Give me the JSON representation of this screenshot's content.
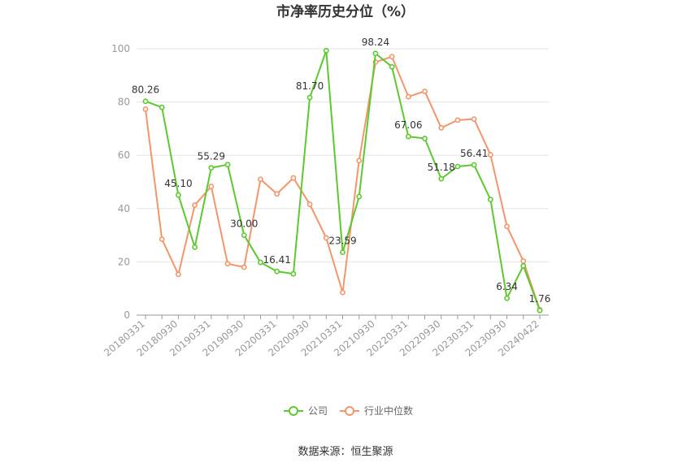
{
  "chart_data": {
    "type": "line",
    "title": "市净率历史分位（%）",
    "source": "数据来源：恒生聚源",
    "ylim": [
      0,
      100
    ],
    "yticks": [
      0,
      20,
      40,
      60,
      80,
      100
    ],
    "grid": true,
    "legend_position": "bottom",
    "x": [
      "20180331",
      "20180630",
      "20180930",
      "20181231",
      "20190331",
      "20190630",
      "20190930",
      "20191231",
      "20200331",
      "20200630",
      "20200930",
      "20201231",
      "20210331",
      "20210630",
      "20210930",
      "20211231",
      "20220331",
      "20220630",
      "20220930",
      "20221231",
      "20230331",
      "20230630",
      "20230930",
      "20231231",
      "20240422"
    ],
    "xtick_labels": [
      "20180331",
      "20180930",
      "20190331",
      "20190930",
      "20200331",
      "20200930",
      "20210331",
      "20210930",
      "20220331",
      "20220930",
      "20230331",
      "20230930",
      "20240422"
    ],
    "series": [
      {
        "name": "公司",
        "color": "#5cc92f",
        "values": [
          80.26,
          78.0,
          45.1,
          25.5,
          55.29,
          56.5,
          30.0,
          19.8,
          16.41,
          15.5,
          81.7,
          99.3,
          23.59,
          44.5,
          98.24,
          93.2,
          67.06,
          66.3,
          51.18,
          55.8,
          56.41,
          43.4,
          6.34,
          18.5,
          1.76
        ],
        "labels": [
          "80.26",
          "",
          "45.10",
          "",
          "55.29",
          "",
          "30.00",
          "",
          "16.41",
          "",
          "81.70",
          "",
          "23.59",
          "",
          "98.24",
          "",
          "67.06",
          "",
          "51.18",
          "",
          "56.41",
          "",
          "6.34",
          "",
          "1.76"
        ]
      },
      {
        "name": "行业中位数",
        "color": "#f4956a",
        "values": [
          77.3,
          28.5,
          15.3,
          41.3,
          48.3,
          19.3,
          18.0,
          51.0,
          45.5,
          51.5,
          41.6,
          29.0,
          8.5,
          58.0,
          95.0,
          97.0,
          82.0,
          84.0,
          70.3,
          73.2,
          73.6,
          60.2,
          33.3,
          20.3,
          2.0
        ]
      }
    ]
  }
}
